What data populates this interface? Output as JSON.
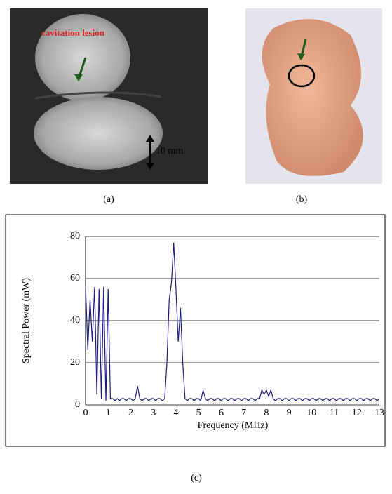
{
  "panel_a": {
    "label": "(a)",
    "annotation": "cavitation lesion",
    "scale_label": "10 mm"
  },
  "panel_b": {
    "label": "(b)"
  },
  "panel_c": {
    "label": "(c)"
  },
  "chart_data": {
    "type": "line",
    "x_label": "Frequency (MHz)",
    "y_label": "Spectral Power (mW)",
    "xlim": [
      0,
      13
    ],
    "ylim": [
      0,
      80
    ],
    "xticks": [
      0,
      1,
      2,
      3,
      4,
      5,
      6,
      7,
      8,
      9,
      10,
      11,
      12,
      13
    ],
    "yticks": [
      0,
      20,
      40,
      60,
      80
    ],
    "grid": true,
    "x": [
      0,
      0.1,
      0.2,
      0.3,
      0.4,
      0.5,
      0.6,
      0.7,
      0.8,
      0.9,
      1,
      1.1,
      1.2,
      1.3,
      1.4,
      1.5,
      1.6,
      1.7,
      1.8,
      1.9,
      2,
      2.1,
      2.2,
      2.3,
      2.4,
      2.5,
      2.6,
      2.7,
      2.8,
      2.9,
      3,
      3.1,
      3.2,
      3.3,
      3.4,
      3.5,
      3.6,
      3.7,
      3.8,
      3.9,
      4,
      4.1,
      4.2,
      4.3,
      4.4,
      4.5,
      4.6,
      4.7,
      4.8,
      4.9,
      5,
      5.1,
      5.2,
      5.3,
      5.4,
      5.5,
      5.6,
      5.7,
      5.8,
      5.9,
      6,
      6.1,
      6.2,
      6.3,
      6.4,
      6.5,
      6.6,
      6.7,
      6.8,
      6.9,
      7,
      7.1,
      7.2,
      7.3,
      7.4,
      7.5,
      7.6,
      7.7,
      7.8,
      7.9,
      8,
      8.1,
      8.2,
      8.3,
      8.4,
      8.5,
      8.6,
      8.7,
      8.8,
      8.9,
      9,
      9.1,
      9.2,
      9.3,
      9.4,
      9.5,
      9.6,
      9.7,
      9.8,
      9.9,
      10,
      10.1,
      10.2,
      10.3,
      10.4,
      10.5,
      10.6,
      10.7,
      10.8,
      10.9,
      11,
      11.1,
      11.2,
      11.3,
      11.4,
      11.5,
      11.6,
      11.7,
      11.8,
      11.9,
      12,
      12.1,
      12.2,
      12.3,
      12.4,
      12.5,
      12.6,
      12.7,
      12.8,
      12.9,
      13
    ],
    "series": [
      {
        "color": "#1a1a80",
        "values": [
          57,
          26,
          50,
          30,
          56,
          5,
          55,
          3,
          56,
          2,
          55,
          3,
          3,
          2,
          3,
          2,
          3,
          3,
          2,
          3,
          3,
          2,
          3,
          9,
          3,
          2,
          3,
          3,
          2,
          3,
          3,
          2,
          3,
          3,
          2,
          3,
          20,
          50,
          58,
          77,
          55,
          30,
          46,
          20,
          3,
          2,
          3,
          3,
          2,
          3,
          3,
          2,
          7,
          3,
          2,
          3,
          3,
          2,
          3,
          3,
          2,
          3,
          3,
          2,
          3,
          3,
          2,
          3,
          3,
          2,
          3,
          3,
          2,
          3,
          3,
          2,
          3,
          3,
          7,
          5,
          7,
          4,
          7,
          3,
          2,
          3,
          3,
          2,
          3,
          3,
          2,
          3,
          3,
          2,
          3,
          3,
          2,
          3,
          3,
          2,
          3,
          3,
          2,
          3,
          3,
          2,
          3,
          3,
          2,
          3,
          3,
          2,
          3,
          3,
          2,
          3,
          3,
          2,
          3,
          3,
          2,
          3,
          3,
          2,
          3,
          3,
          2,
          3,
          3,
          2,
          3
        ]
      }
    ]
  }
}
